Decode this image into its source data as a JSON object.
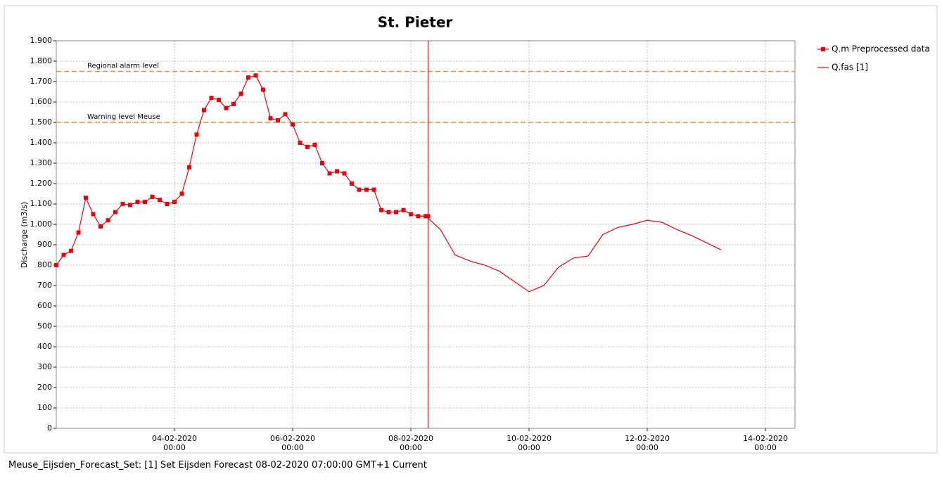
{
  "chart_data": {
    "type": "line",
    "title": "St. Pieter",
    "y_label": "Discharge (m3/s)",
    "footer": "Meuse_Eijsden_Forecast_Set: [1] Set Eijsden Forecast 08-02-2020 07:00:00 GMT+1 Current",
    "xlim": [
      "2020-02-02T00:00",
      "2020-02-14T12:00"
    ],
    "xticks": [
      {
        "value": "2020-02-04T00:00",
        "label": "04-02-2020\n00:00"
      },
      {
        "value": "2020-02-06T00:00",
        "label": "06-02-2020\n00:00"
      },
      {
        "value": "2020-02-08T00:00",
        "label": "08-02-2020\n00:00"
      },
      {
        "value": "2020-02-10T00:00",
        "label": "10-02-2020\n00:00"
      },
      {
        "value": "2020-02-12T00:00",
        "label": "12-02-2020\n00:00"
      },
      {
        "value": "2020-02-14T00:00",
        "label": "14-02-2020\n00:00"
      }
    ],
    "ylim": [
      0,
      1900
    ],
    "yticks": [
      0,
      100,
      200,
      300,
      400,
      500,
      600,
      700,
      800,
      900,
      {
        "value": 1000,
        "label": "1.000"
      },
      {
        "value": 1100,
        "label": "1.100"
      },
      {
        "value": 1200,
        "label": "1.200"
      },
      {
        "value": 1300,
        "label": "1.300"
      },
      {
        "value": 1400,
        "label": "1.400"
      },
      {
        "value": 1500,
        "label": "1.500"
      },
      {
        "value": 1600,
        "label": "1.600"
      },
      {
        "value": 1700,
        "label": "1.700"
      },
      {
        "value": 1800,
        "label": "1.800"
      },
      {
        "value": 1900,
        "label": "1.900"
      }
    ],
    "grid": true,
    "legend": "right",
    "now_line": {
      "x": "2020-02-08T07:00",
      "color": "#e8000b"
    },
    "reference_lines": [
      {
        "label": "Regional alarm level",
        "value": 1750,
        "color": "#f0902a"
      },
      {
        "label": "Warning level Meuse",
        "value": 1500,
        "color": "#f0902a"
      }
    ],
    "series": [
      {
        "name": "Q.m Preprocessed data",
        "color": "#e8000b",
        "marker": "square",
        "x": [
          "2020-02-02T00:00",
          "2020-02-02T03:00",
          "2020-02-02T06:00",
          "2020-02-02T09:00",
          "2020-02-02T12:00",
          "2020-02-02T15:00",
          "2020-02-02T18:00",
          "2020-02-02T21:00",
          "2020-02-03T00:00",
          "2020-02-03T03:00",
          "2020-02-03T06:00",
          "2020-02-03T09:00",
          "2020-02-03T12:00",
          "2020-02-03T15:00",
          "2020-02-03T18:00",
          "2020-02-03T21:00",
          "2020-02-04T00:00",
          "2020-02-04T03:00",
          "2020-02-04T06:00",
          "2020-02-04T09:00",
          "2020-02-04T12:00",
          "2020-02-04T15:00",
          "2020-02-04T18:00",
          "2020-02-04T21:00",
          "2020-02-05T00:00",
          "2020-02-05T03:00",
          "2020-02-05T06:00",
          "2020-02-05T09:00",
          "2020-02-05T12:00",
          "2020-02-05T15:00",
          "2020-02-05T18:00",
          "2020-02-05T21:00",
          "2020-02-06T00:00",
          "2020-02-06T03:00",
          "2020-02-06T06:00",
          "2020-02-06T09:00",
          "2020-02-06T12:00",
          "2020-02-06T15:00",
          "2020-02-06T18:00",
          "2020-02-06T21:00",
          "2020-02-07T00:00",
          "2020-02-07T03:00",
          "2020-02-07T06:00",
          "2020-02-07T09:00",
          "2020-02-07T12:00",
          "2020-02-07T15:00",
          "2020-02-07T18:00",
          "2020-02-07T21:00",
          "2020-02-08T00:00",
          "2020-02-08T03:00",
          "2020-02-08T06:00",
          "2020-02-08T07:00"
        ],
        "values": [
          800,
          850,
          870,
          960,
          1130,
          1050,
          990,
          1020,
          1060,
          1100,
          1095,
          1110,
          1110,
          1135,
          1120,
          1100,
          1110,
          1150,
          1280,
          1440,
          1560,
          1620,
          1610,
          1570,
          1590,
          1640,
          1720,
          1730,
          1660,
          1520,
          1510,
          1540,
          1490,
          1400,
          1380,
          1390,
          1300,
          1250,
          1260,
          1250,
          1200,
          1170,
          1170,
          1170,
          1070,
          1060,
          1060,
          1070,
          1050,
          1040,
          1040,
          1040
        ]
      },
      {
        "name": "Q.fas [1]",
        "color": "#e8000b",
        "marker": "none",
        "x": [
          "2020-02-08T07:00",
          "2020-02-08T12:00",
          "2020-02-08T18:00",
          "2020-02-09T00:00",
          "2020-02-09T06:00",
          "2020-02-09T12:00",
          "2020-02-09T18:00",
          "2020-02-10T00:00",
          "2020-02-10T06:00",
          "2020-02-10T12:00",
          "2020-02-10T18:00",
          "2020-02-11T00:00",
          "2020-02-11T06:00",
          "2020-02-11T12:00",
          "2020-02-11T18:00",
          "2020-02-12T00:00",
          "2020-02-12T06:00",
          "2020-02-12T12:00",
          "2020-02-12T18:00",
          "2020-02-13T00:00",
          "2020-02-13T06:00"
        ],
        "values": [
          1030,
          975,
          850,
          820,
          800,
          770,
          720,
          670,
          700,
          790,
          835,
          845,
          950,
          985,
          1000,
          1020,
          1010,
          975,
          945,
          910,
          875
        ]
      }
    ]
  }
}
